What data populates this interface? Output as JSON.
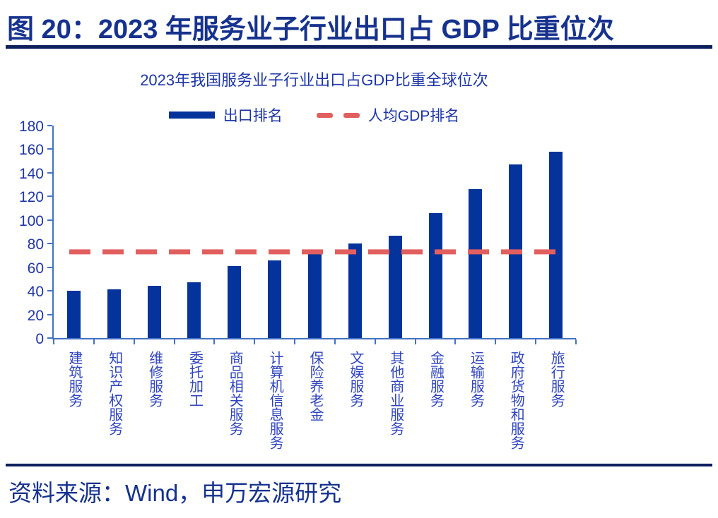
{
  "header": {
    "title": "图 20：2023 年服务业子行业出口占 GDP 比重位次"
  },
  "footer": {
    "source": "资料来源：Wind，申万宏源研究"
  },
  "legend": {
    "bar_label": "出口排名",
    "line_label": "人均GDP排名"
  },
  "colors": {
    "bar": "#04339B",
    "reference_line": "#E25F5F",
    "axis": "#4472C4",
    "title_text": "#16328E",
    "body_text": "#1D35A8",
    "category_text": "#2F44BF",
    "rule": "#0D1F5C"
  },
  "chart_data": {
    "type": "bar",
    "title": "2023年我国服务业子行业出口占GDP比重全球位次",
    "categories": [
      "建筑服务",
      "知识产权服务",
      "维修服务",
      "委托加工",
      "商品相关服务",
      "计算机信息服务",
      "保险养老金",
      "文娱服务",
      "其他商业服务",
      "金融服务",
      "运输服务",
      "政府货物和服务",
      "旅行服务"
    ],
    "series": [
      {
        "name": "出口排名",
        "type": "bar",
        "values": [
          40,
          41,
          44,
          47,
          61,
          66,
          72,
          80,
          87,
          106,
          126,
          147,
          158
        ]
      },
      {
        "name": "人均GDP排名",
        "type": "dashed-reference-line",
        "value": 73
      }
    ],
    "xlabel": "",
    "ylabel": "",
    "ylim": [
      0,
      180
    ],
    "yticks": [
      0,
      20,
      40,
      60,
      80,
      100,
      120,
      140,
      160,
      180
    ],
    "legend_position": "top",
    "grid": false
  }
}
